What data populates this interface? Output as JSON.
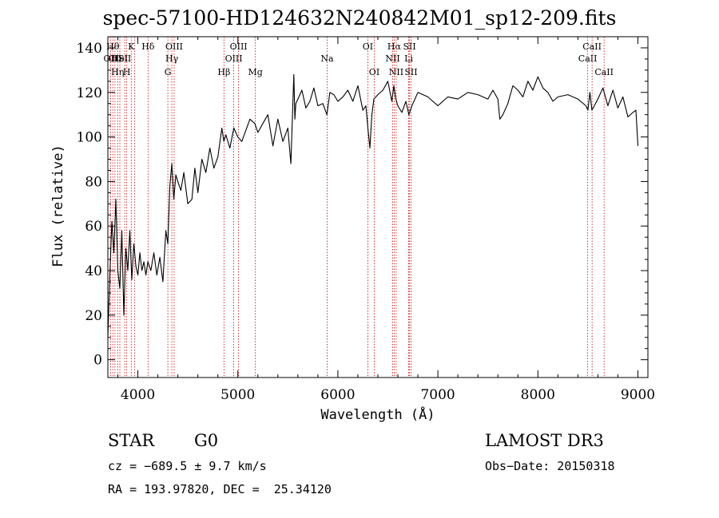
{
  "chart_data": {
    "type": "line",
    "title": "spec-57100-HD124632N240842M01_sp12-209.fits",
    "xlabel": "Wavelength (Å)",
    "ylabel": "Flux (relative)",
    "xlim": [
      3700,
      9100
    ],
    "ylim": [
      -8,
      145
    ],
    "xticks": [
      4000,
      5000,
      6000,
      7000,
      8000,
      9000
    ],
    "yticks": [
      0,
      20,
      40,
      60,
      80,
      100,
      120,
      140
    ],
    "grid": false,
    "line_color": "#000000",
    "marker_color": "#cc0000",
    "series": [
      {
        "x": [
          3700,
          3720,
          3740,
          3760,
          3780,
          3800,
          3820,
          3840,
          3860,
          3880,
          3900,
          3920,
          3940,
          3960,
          3980,
          4000,
          4020,
          4040,
          4060,
          4080,
          4100,
          4130,
          4160,
          4190,
          4220,
          4250,
          4280,
          4300,
          4320,
          4340,
          4360,
          4380,
          4400,
          4430,
          4460,
          4500,
          4540,
          4570,
          4600,
          4640,
          4680,
          4720,
          4760,
          4800,
          4840,
          4860,
          4880,
          4920,
          4960,
          5000,
          5040,
          5080,
          5120,
          5170,
          5200,
          5250,
          5300,
          5350,
          5400,
          5450,
          5500,
          5530,
          5560,
          5570,
          5580,
          5600,
          5640,
          5680,
          5720,
          5760,
          5800,
          5850,
          5890,
          5920,
          5960,
          6000,
          6050,
          6100,
          6150,
          6200,
          6250,
          6280,
          6300,
          6320,
          6340,
          6360,
          6400,
          6450,
          6500,
          6540,
          6560,
          6580,
          6600,
          6640,
          6680,
          6710,
          6740,
          6800,
          6900,
          7000,
          7100,
          7200,
          7300,
          7400,
          7500,
          7550,
          7600,
          7620,
          7650,
          7700,
          7750,
          7800,
          7850,
          7900,
          7950,
          8000,
          8050,
          8100,
          8150,
          8200,
          8300,
          8400,
          8480,
          8500,
          8520,
          8540,
          8600,
          8650,
          8700,
          8750,
          8800,
          8850,
          8900,
          8950,
          8980,
          9000
        ],
        "y": [
          10,
          38,
          62,
          48,
          72,
          40,
          32,
          58,
          20,
          50,
          40,
          58,
          36,
          52,
          42,
          38,
          48,
          40,
          44,
          38,
          44,
          40,
          48,
          38,
          46,
          35,
          58,
          52,
          78,
          88,
          72,
          83,
          80,
          76,
          84,
          70,
          72,
          86,
          75,
          90,
          84,
          95,
          86,
          91,
          104,
          98,
          101,
          95,
          104,
          100,
          98,
          103,
          108,
          106,
          102,
          106,
          110,
          96,
          108,
          98,
          104,
          88,
          128,
          108,
          115,
          117,
          121,
          113,
          116,
          122,
          114,
          115,
          110,
          120,
          119,
          116,
          118,
          121,
          116,
          123,
          112,
          114,
          104,
          95,
          110,
          117,
          119,
          121,
          125,
          116,
          123,
          117,
          114,
          111,
          116,
          110,
          114,
          120,
          118,
          114,
          118,
          117,
          120,
          119,
          117,
          121,
          117,
          108,
          110,
          115,
          123,
          121,
          118,
          125,
          121,
          127,
          122,
          120,
          116,
          118,
          119,
          117,
          114,
          112,
          120,
          112,
          117,
          122,
          114,
          121,
          113,
          118,
          109,
          111,
          112,
          96
        ]
      }
    ],
    "line_markers": [
      {
        "wl": 3727,
        "label": "OII",
        "row": 1
      },
      {
        "wl": 3750,
        "label": "Hθ",
        "row": 0
      },
      {
        "wl": 3771,
        "label": "CII",
        "row": 1
      },
      {
        "wl": 3798,
        "label": "Hη",
        "row": 2
      },
      {
        "wl": 3820,
        "label": "HeI",
        "row": 1
      },
      {
        "wl": 3869,
        "label": "SII",
        "row": 1
      },
      {
        "wl": 3889,
        "label": "H",
        "row": 2
      },
      {
        "wl": 3934,
        "label": "K",
        "row": 0
      },
      {
        "wl": 3969,
        "label": "",
        "row": 0
      },
      {
        "wl": 4102,
        "label": "Hδ",
        "row": 0
      },
      {
        "wl": 4300,
        "label": "G",
        "row": 2
      },
      {
        "wl": 4340,
        "label": "Hγ",
        "row": 1
      },
      {
        "wl": 4363,
        "label": "OIII",
        "row": 0
      },
      {
        "wl": 4861,
        "label": "Hβ",
        "row": 2
      },
      {
        "wl": 4959,
        "label": "OIII",
        "row": 1
      },
      {
        "wl": 5007,
        "label": "OIII",
        "row": 0
      },
      {
        "wl": 5175,
        "label": "Mg",
        "row": 2
      },
      {
        "wl": 5893,
        "label": "Na",
        "row": 1
      },
      {
        "wl": 6300,
        "label": "OI",
        "row": 0
      },
      {
        "wl": 6364,
        "label": "OI",
        "row": 2
      },
      {
        "wl": 6548,
        "label": "NII",
        "row": 1
      },
      {
        "wl": 6563,
        "label": "Hα",
        "row": 0
      },
      {
        "wl": 6583,
        "label": "NII",
        "row": 2
      },
      {
        "wl": 6708,
        "label": "Li",
        "row": 1
      },
      {
        "wl": 6716,
        "label": "SII",
        "row": 0
      },
      {
        "wl": 6731,
        "label": "SII",
        "row": 2
      },
      {
        "wl": 8498,
        "label": "CaII",
        "row": 1
      },
      {
        "wl": 8542,
        "label": "CaII",
        "row": 0
      },
      {
        "wl": 8662,
        "label": "CaII",
        "row": 2
      }
    ]
  },
  "info": {
    "object_class": "STAR",
    "subclass": "G0",
    "survey": "LAMOST DR3",
    "cz": "cz = −689.5 ± 9.7 km/s",
    "obs_date": "Obs−Date: 20150318",
    "radec": "RA = 193.97820, DEC =  25.34120"
  }
}
